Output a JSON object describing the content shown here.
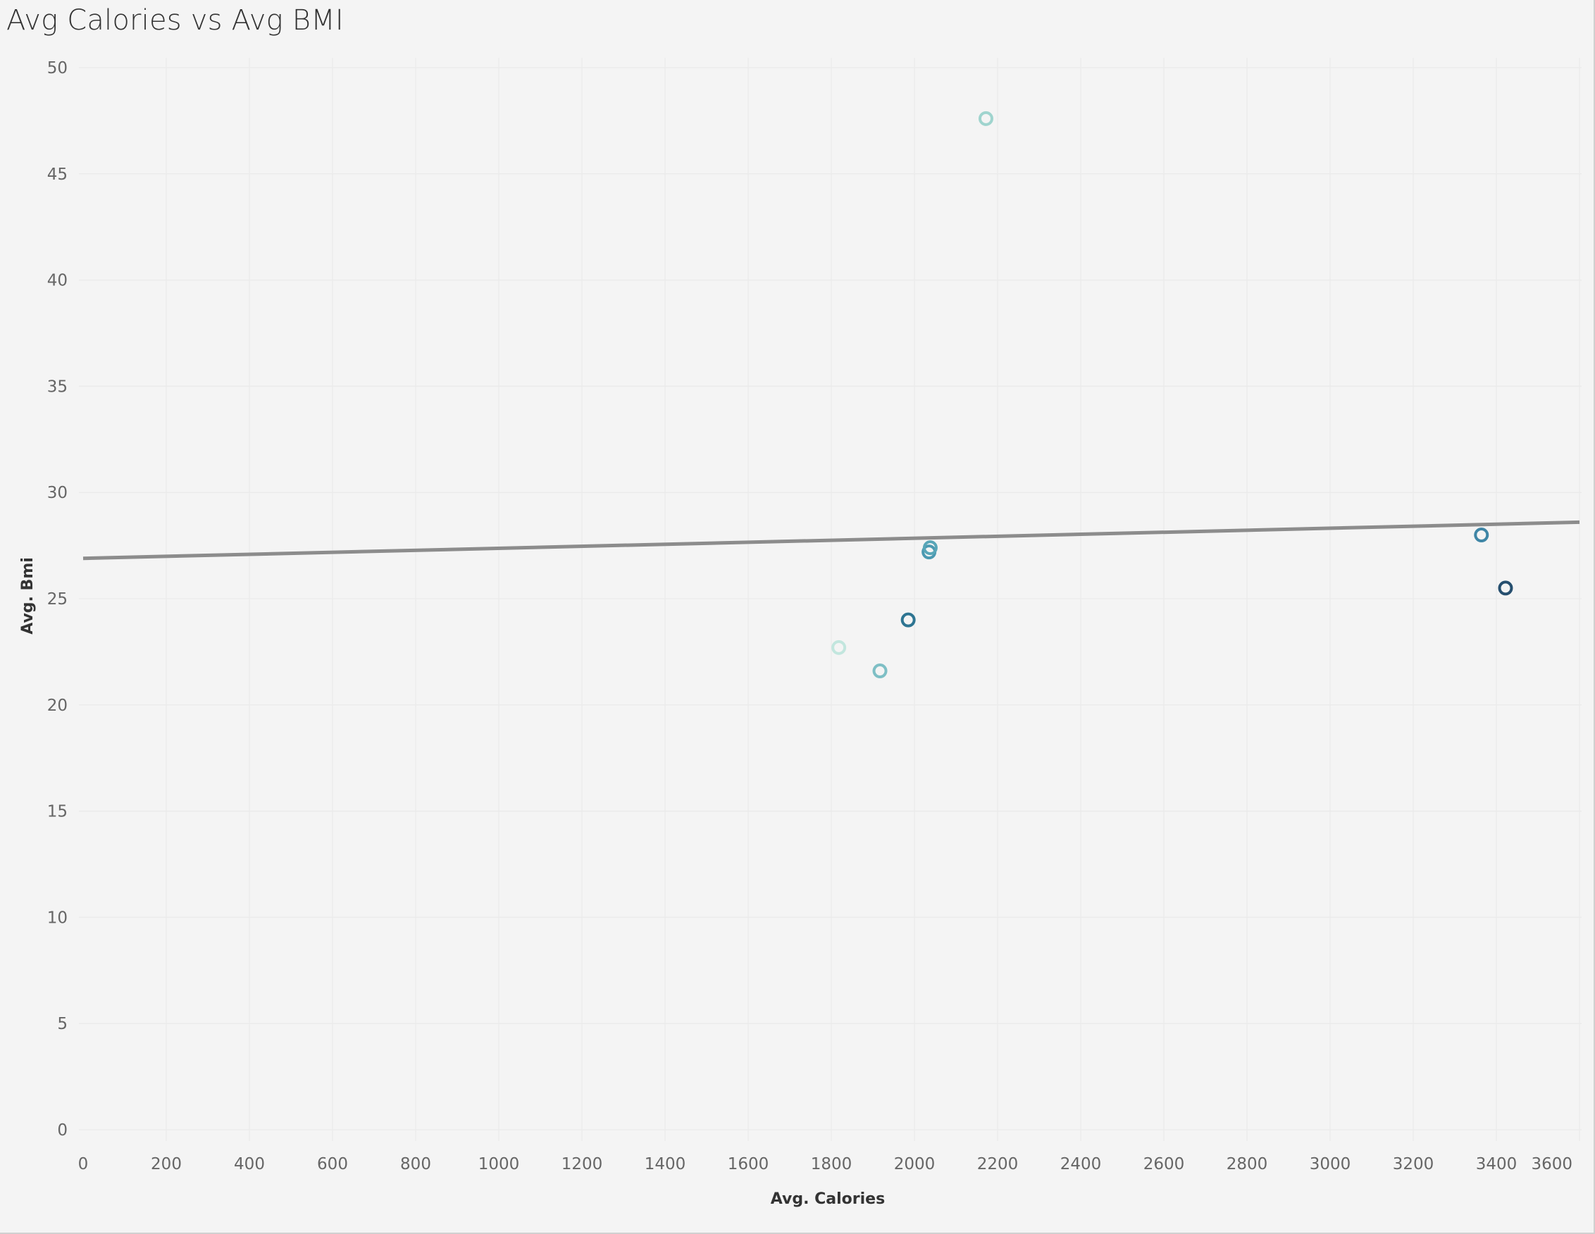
{
  "title": "Avg Calories vs Avg BMI",
  "chart_data": {
    "type": "scatter",
    "title": "Avg Calories vs Avg BMI",
    "xlabel": "Avg. Calories",
    "ylabel": "Avg. Bmi",
    "xlim": [
      0,
      3600
    ],
    "ylim": [
      0,
      50
    ],
    "x_ticks": [
      0,
      200,
      400,
      600,
      800,
      1000,
      1200,
      1400,
      1600,
      1800,
      2000,
      2200,
      2400,
      2600,
      2800,
      3000,
      3200,
      3400,
      3600
    ],
    "y_ticks": [
      0,
      5,
      10,
      15,
      20,
      25,
      30,
      35,
      40,
      45,
      50
    ],
    "grid": true,
    "legend": "none",
    "marker": "hollow-circle",
    "trend_line": {
      "type": "linear",
      "points": [
        [
          0,
          26.9
        ],
        [
          3600,
          28.6
        ]
      ],
      "color": "#8c8c8c"
    },
    "points": [
      {
        "x": 2172,
        "y": 47.6,
        "color": "#9fd4ce"
      },
      {
        "x": 1818,
        "y": 22.7,
        "color": "#c2e6de"
      },
      {
        "x": 1917,
        "y": 21.6,
        "color": "#7ebfc5"
      },
      {
        "x": 1985,
        "y": 24.0,
        "color": "#2e7592"
      },
      {
        "x": 2035,
        "y": 27.2,
        "color": "#4b99b1"
      },
      {
        "x": 2038,
        "y": 27.4,
        "color": "#58a6b8"
      },
      {
        "x": 3364,
        "y": 28.0,
        "color": "#3f86a6"
      },
      {
        "x": 3422,
        "y": 25.5,
        "color": "#264f6f"
      }
    ]
  }
}
